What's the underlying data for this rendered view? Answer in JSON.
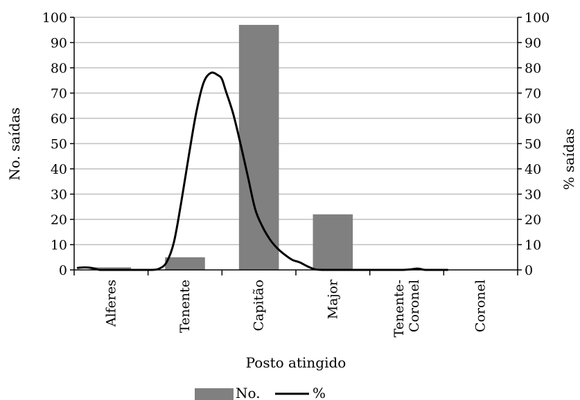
{
  "chart_data": {
    "type": "bar",
    "title": "",
    "xlabel": "Posto atingido",
    "ylabel": "No. saídas",
    "y2label": "% saídas",
    "categories": [
      [
        "Alferes"
      ],
      [
        "Tenente"
      ],
      [
        "Capitão"
      ],
      [
        "Major"
      ],
      [
        "Tenente-",
        "Coronel"
      ],
      [
        "Coronel"
      ]
    ],
    "ylim": [
      0,
      100
    ],
    "y2lim": [
      0,
      100
    ],
    "yticks": [
      0,
      10,
      20,
      30,
      40,
      50,
      60,
      70,
      80,
      90,
      100
    ],
    "grid": true,
    "legend_position": "bottom",
    "series": [
      {
        "name": "No.",
        "kind": "bar",
        "axis": "left",
        "color": "#808080",
        "values": [
          1,
          5,
          97,
          22,
          0,
          0
        ]
      },
      {
        "name": "%",
        "kind": "line",
        "axis": "right",
        "color": "#000000",
        "x": [
          0.05,
          0.15,
          0.25,
          0.35,
          0.45,
          0.55,
          0.65,
          0.75,
          0.85,
          0.95,
          1.05,
          1.15,
          1.25,
          1.35,
          1.45,
          1.55,
          1.65,
          1.75,
          1.85,
          1.95,
          2.0,
          2.05,
          2.15,
          2.25,
          2.35,
          2.45,
          2.55,
          2.65,
          2.75,
          2.85,
          2.95,
          3.05,
          3.15,
          3.25,
          3.35,
          3.45,
          3.55,
          3.65,
          3.75,
          3.85,
          3.95,
          4.05,
          4.15,
          4.25,
          4.35,
          4.45,
          4.55,
          4.65,
          4.75,
          4.85,
          4.95,
          5.05
        ],
        "values": [
          0.8,
          1,
          0.7,
          0,
          0,
          0,
          0,
          0,
          0,
          0,
          0,
          0.5,
          3,
          11,
          27,
          45,
          62,
          74,
          78,
          77,
          75.5,
          71,
          62,
          50,
          37,
          24,
          17,
          12,
          8.5,
          6,
          4,
          3,
          1.5,
          0.3,
          0,
          0,
          0,
          0,
          0,
          0,
          0,
          0,
          0,
          0,
          0,
          0,
          0.2,
          0.5,
          0,
          0,
          0,
          0
        ]
      }
    ]
  }
}
